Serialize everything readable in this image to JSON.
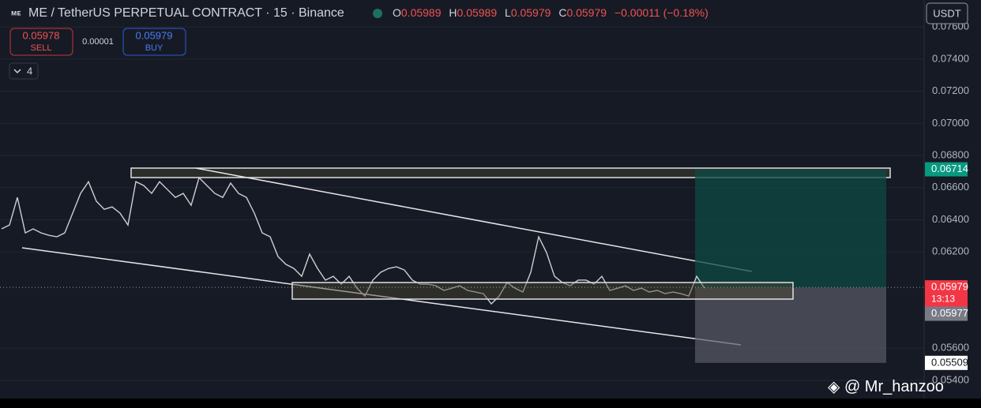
{
  "header": {
    "symbol": "ME / TetherUS PERPETUAL CONTRACT · 15 · Binance",
    "o_label": "O",
    "o": 0.05989,
    "h_label": "H",
    "h": 0.05989,
    "l_label": "L",
    "l": 0.05979,
    "c_label": "C",
    "c": 0.05979,
    "change": "−0.00011 (−0.18%)"
  },
  "trade": {
    "sell_price": 0.05978,
    "sell_label": "SELL",
    "spread": 1e-05,
    "buy_price": 0.05979,
    "buy_label": "BUY"
  },
  "indicators_count": "4",
  "currency": "USDT",
  "watermark": "@ Mr_hanzoo",
  "chart_data": {
    "type": "line",
    "color": "#cfcfcf",
    "values": [
      0.06343,
      0.06367,
      0.06539,
      0.06318,
      0.06343,
      0.06318,
      0.06303,
      0.06294,
      0.06318,
      0.06441,
      0.06564,
      0.06637,
      0.06515,
      0.06465,
      0.0648,
      0.06441,
      0.06367,
      0.06637,
      0.06613,
      0.06564,
      0.06637,
      0.06588,
      0.06539,
      0.06564,
      0.0649,
      0.06662,
      0.06613,
      0.06564,
      0.06539,
      0.06628,
      0.06564,
      0.06539,
      0.06441,
      0.06318,
      0.06294,
      0.06171,
      0.06122,
      0.06097,
      0.06048,
      0.06186,
      0.06097,
      0.06024,
      0.06048,
      0.05999,
      0.06048,
      0.05974,
      0.05925,
      0.06024,
      0.06073,
      0.06097,
      0.06107,
      0.06087,
      0.06024,
      0.05999,
      0.05999,
      0.05989,
      0.0596,
      0.05974,
      0.05989,
      0.0596,
      0.0595,
      0.0594,
      0.05876,
      0.05925,
      0.06009,
      0.05974,
      0.0595,
      0.06073,
      0.06294,
      0.06195,
      0.06048,
      0.06009,
      0.05989,
      0.06024,
      0.06024,
      0.05999,
      0.06048,
      0.0596,
      0.05974,
      0.05989,
      0.0596,
      0.05974,
      0.0595,
      0.0596,
      0.0594,
      0.0595,
      0.0594,
      0.05925,
      0.06048,
      0.05974
    ],
    "ylim": [
      0.05287,
      0.07768
    ],
    "yticks": [
      {
        "value": 0.076,
        "label": "0.07600"
      },
      {
        "value": 0.074,
        "label": "0.07400"
      },
      {
        "value": 0.072,
        "label": "0.07200"
      },
      {
        "value": 0.07,
        "label": "0.07000"
      },
      {
        "value": 0.068,
        "label": "0.06800"
      },
      {
        "value": 0.066,
        "label": "0.06600"
      },
      {
        "value": 0.064,
        "label": "0.06400"
      },
      {
        "value": 0.062,
        "label": "0.06200"
      },
      {
        "value": 0.056,
        "label": "0.05600"
      },
      {
        "value": 0.054,
        "label": "0.05400"
      }
    ],
    "grid": true,
    "target": 0.06714,
    "last": 0.05979,
    "countdown": "13:13",
    "entry": 0.05977,
    "stop": 0.05509
  }
}
